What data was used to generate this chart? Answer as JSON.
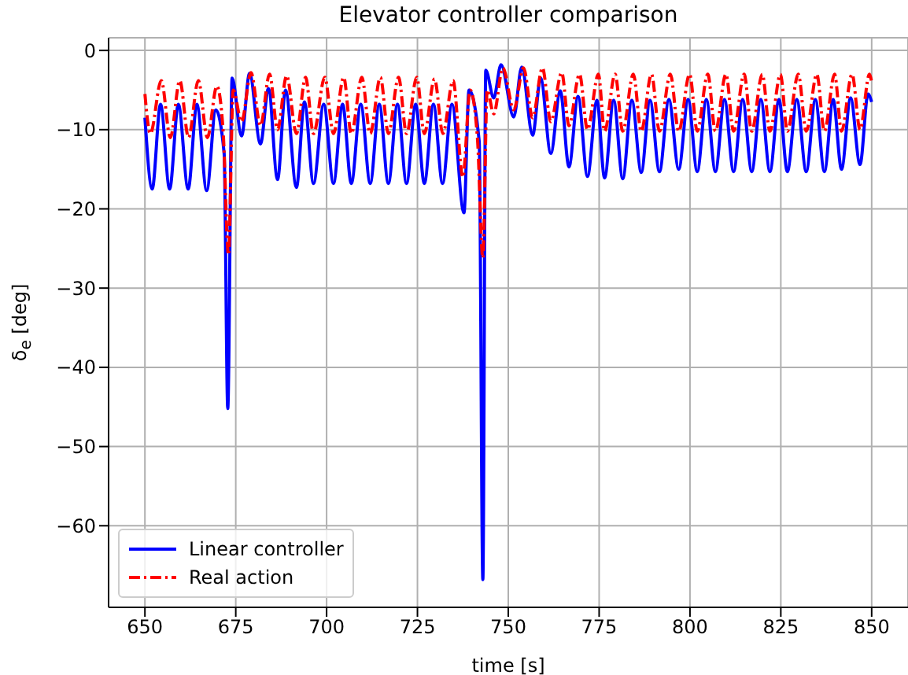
{
  "chart_data": {
    "type": "line",
    "title": "Elevator controller comparison",
    "xlabel": "time [s]",
    "ylabel": "δ$_{e}$ [deg]",
    "xlim": [
      640,
      860
    ],
    "xticks": [
      650,
      675,
      700,
      725,
      750,
      775,
      800,
      825,
      850
    ],
    "ylim": [
      -70.3,
      1.6
    ],
    "yticks": [
      0,
      -10,
      -20,
      -30,
      -40,
      -50,
      -60
    ],
    "grid": true,
    "legend": "bottom left",
    "marker": "none",
    "series": [
      {
        "name": "Linear controller",
        "color": "#0000ff",
        "line_style": "solid",
        "x": [
          650,
          652,
          654.3,
          656.8,
          659.2,
          661.9,
          664.3,
          667,
          669.5,
          671.8,
          672.8,
          674,
          676.6,
          678.8,
          681.8,
          684,
          686.5,
          688.7,
          691.7,
          693.9,
          696.4,
          699.2,
          701.9,
          704.4,
          706.8,
          709.4,
          712,
          714.5,
          717,
          719.5,
          722,
          724.5,
          726.9,
          729.4,
          731.9,
          734.5,
          737.8,
          739.2,
          742,
          743,
          743.8,
          746,
          748,
          751.5,
          753.7,
          756.7,
          758.9,
          761.7,
          764.3,
          766.7,
          769.2,
          771.8,
          774.4,
          776.5,
          779,
          781.5,
          784,
          786.6,
          789,
          791.6,
          794.2,
          796.9,
          799.5,
          802,
          804.5,
          807,
          809.5,
          812,
          814.5,
          817,
          819.5,
          822,
          824.5,
          826.8,
          829.4,
          832,
          834.5,
          837,
          839.4,
          841.7,
          844.2,
          846.8,
          849,
          850
        ],
        "values": [
          -8.5,
          -17.5,
          -6.8,
          -17.5,
          -6.8,
          -17.5,
          -6.8,
          -17.7,
          -7.5,
          -13,
          -45.2,
          -3.5,
          -10.8,
          -2.9,
          -11.8,
          -4.8,
          -16.3,
          -5,
          -17.3,
          -6.5,
          -16.8,
          -6.8,
          -16.8,
          -6.8,
          -16.8,
          -6.8,
          -16.8,
          -6.8,
          -16.8,
          -6.8,
          -16.8,
          -6.8,
          -16.8,
          -6.8,
          -16.8,
          -6.8,
          -20.5,
          -5,
          -11.5,
          -66.8,
          -2.5,
          -6,
          -1.8,
          -8.4,
          -2.1,
          -10.7,
          -3.5,
          -13,
          -5.1,
          -14.7,
          -5.8,
          -15.9,
          -6.3,
          -16.1,
          -6.3,
          -16.2,
          -6.3,
          -15.4,
          -6.3,
          -15.3,
          -6.2,
          -15,
          -6.2,
          -15.3,
          -6.2,
          -15.3,
          -6.2,
          -15.3,
          -6.2,
          -15.3,
          -6.2,
          -15.3,
          -6.2,
          -15.3,
          -6.2,
          -15.3,
          -6.2,
          -15.3,
          -6.2,
          -15,
          -6,
          -14.4,
          -5.5,
          -6.5
        ]
      },
      {
        "name": "Real action",
        "color": "#ff0000",
        "line_style": "dashdot",
        "x": [
          650,
          651.5,
          654.5,
          657,
          659.6,
          662,
          664.7,
          667.2,
          669.8,
          671.5,
          673,
          674.3,
          676.6,
          679.2,
          681.8,
          684.3,
          686.5,
          689,
          691.7,
          694.2,
          696.4,
          699.5,
          701.9,
          704.7,
          706.8,
          709.7,
          712,
          714.8,
          717,
          719.8,
          722,
          724.8,
          726.9,
          729.7,
          732,
          734.8,
          737.5,
          739.5,
          741.5,
          743,
          744.2,
          746,
          748.5,
          751.5,
          754.2,
          756.7,
          759.4,
          761.7,
          764.7,
          766.7,
          769.6,
          771.8,
          774.8,
          776.5,
          779.4,
          781.5,
          784.4,
          786.6,
          789.4,
          791.6,
          794.6,
          796.9,
          799.9,
          802,
          804.9,
          807,
          809.9,
          812,
          814.9,
          817,
          819.9,
          822,
          824.9,
          826.8,
          829.8,
          832,
          834.9,
          837,
          839.8,
          841.7,
          844.6,
          846.8,
          849.4,
          850
        ],
        "values": [
          -5.5,
          -10.5,
          -3.8,
          -11,
          -3.8,
          -11,
          -3.8,
          -11,
          -4.5,
          -10,
          -25.8,
          -5,
          -9,
          -2.8,
          -9.5,
          -3,
          -10,
          -3.2,
          -10.5,
          -3.4,
          -10.5,
          -3.4,
          -10.5,
          -3.4,
          -10.5,
          -3.4,
          -10.5,
          -3.4,
          -10.5,
          -3.4,
          -10.5,
          -3.4,
          -10.5,
          -3.6,
          -10.5,
          -3.8,
          -16,
          -5,
          -11,
          -26.2,
          -5,
          -8,
          -2.2,
          -7.5,
          -2.2,
          -8.5,
          -2.2,
          -9,
          -2.8,
          -9.5,
          -3,
          -10,
          -3,
          -10.2,
          -3,
          -10.2,
          -3,
          -10.2,
          -3,
          -10.2,
          -3,
          -10.2,
          -3,
          -10.2,
          -3,
          -10.2,
          -3,
          -10.2,
          -3,
          -10.2,
          -3,
          -10.2,
          -3,
          -10.2,
          -3,
          -10.2,
          -3,
          -10.2,
          -3,
          -10.2,
          -3,
          -10,
          -3,
          -4
        ]
      }
    ]
  }
}
